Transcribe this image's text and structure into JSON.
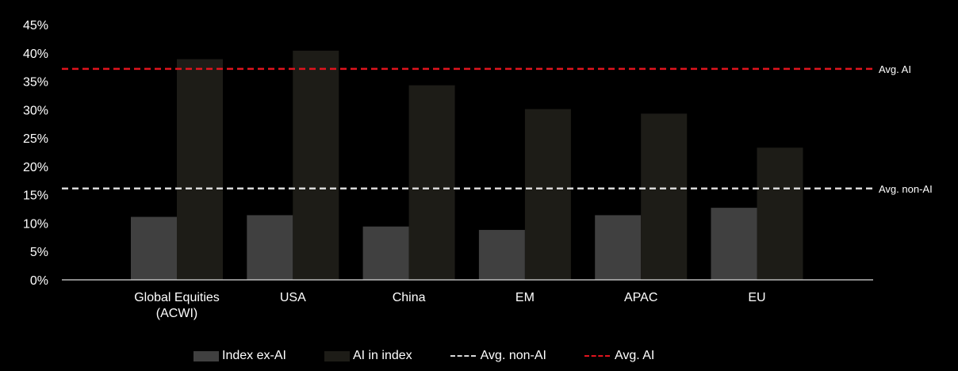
{
  "chart_data": {
    "type": "bar",
    "categories": [
      [
        "Global Equities",
        "(ACWI)"
      ],
      [
        "USA"
      ],
      [
        "China"
      ],
      [
        "EM"
      ],
      [
        "APAC"
      ],
      [
        "EU"
      ]
    ],
    "series": [
      {
        "name": "Index ex-AI",
        "color": "#404040",
        "values": [
          11.1,
          11.4,
          9.4,
          8.8,
          11.4,
          12.7
        ]
      },
      {
        "name": "AI in index",
        "color": "#1d1c17",
        "values": [
          38.9,
          40.4,
          34.3,
          30.1,
          29.3,
          23.3
        ]
      }
    ],
    "reference_lines": [
      {
        "name": "Avg. non-AI",
        "label": "Avg. non-AI",
        "value": 16.1,
        "color": "#d9d9d9"
      },
      {
        "name": "Avg. AI",
        "label": "Avg. AI",
        "value": 37.2,
        "color": "#e0141e"
      }
    ],
    "y_ticks": [
      "0%",
      "5%",
      "10%",
      "15%",
      "20%",
      "25%",
      "30%",
      "35%",
      "40%",
      "45%"
    ],
    "ylim": [
      0,
      45
    ],
    "title": "",
    "xlabel": "",
    "ylabel": "",
    "grid": false,
    "legend_position": "bottom"
  },
  "legend": {
    "items": [
      {
        "label": "Index ex-AI",
        "kind": "bar",
        "color": "#404040"
      },
      {
        "label": "AI in index",
        "kind": "bar",
        "color": "#1d1c17"
      },
      {
        "label": "Avg. non-AI",
        "kind": "dashed-line",
        "color": "#d9d9d9"
      },
      {
        "label": "Avg. AI",
        "kind": "dashed-line",
        "color": "#e0141e"
      }
    ]
  }
}
